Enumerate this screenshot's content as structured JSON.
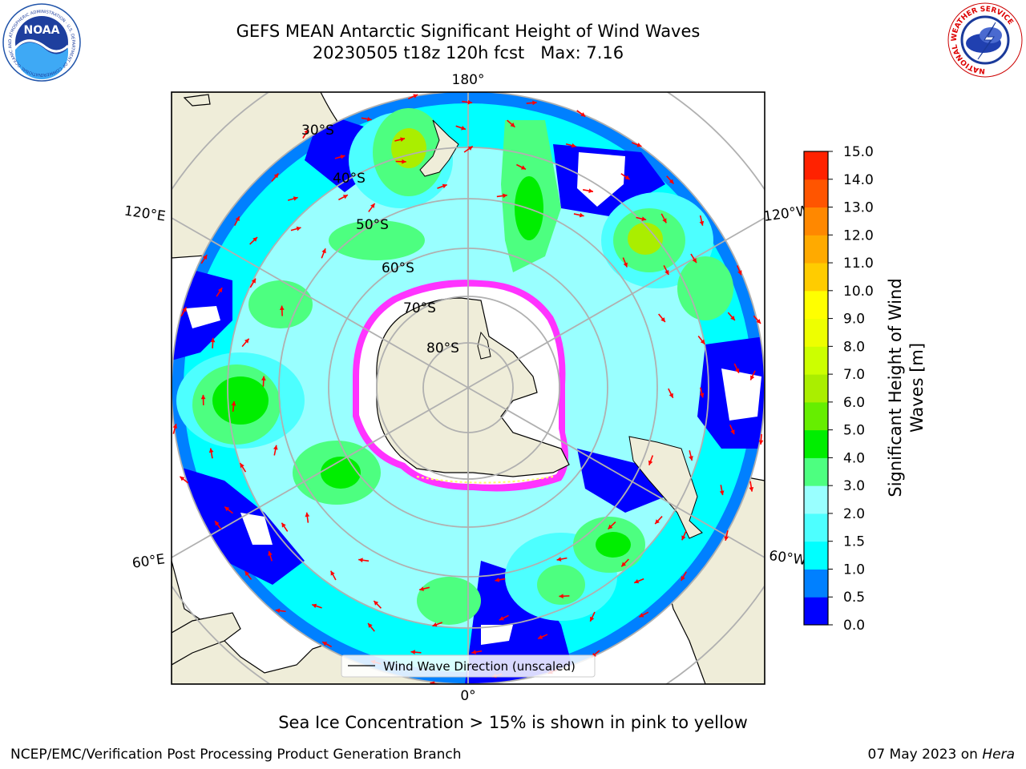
{
  "title": {
    "line1": "GEFS MEAN Antarctic Significant Height of Wind Waves",
    "line2": "20230505 t18z 120h fcst   Max: 7.16"
  },
  "logos": {
    "noaa_text": "NOAA",
    "noaa_ring": "NATIONAL OCEANIC AND ATMOSPHERIC ADMINISTRATION · U.S. DEPARTMENT OF COMMERCE",
    "nws_ring": "NATIONAL WEATHER SERVICE"
  },
  "map": {
    "projection": "south-polar-stereographic",
    "longitude_labels": {
      "top": "180°",
      "left_upper": "120°E",
      "right_upper": "120°W",
      "left_lower": "60°E",
      "right_lower": "60°W",
      "bottom": "0°"
    },
    "latitude_labels": [
      "30°S",
      "40°S",
      "50°S",
      "60°S",
      "70°S",
      "80°S"
    ],
    "legend_label": "Wind Wave Direction (unscaled)",
    "arrow_color": "#ff0000",
    "ice_colors": [
      "#ff33ff",
      "#ffff66"
    ],
    "land_color": "#efedd9",
    "ocean_colors": {
      "low": "#0000ff",
      "mid": "#00ffff",
      "high": "#66ff33"
    }
  },
  "colorbar": {
    "label_line1": "Significant Height of Wind",
    "label_line2": "Waves [m]",
    "ticks": [
      "0.0",
      "0.5",
      "1.0",
      "1.5",
      "2.0",
      "3.0",
      "4.0",
      "5.0",
      "6.0",
      "7.0",
      "8.0",
      "9.0",
      "10.0",
      "11.0",
      "12.0",
      "13.0",
      "14.0",
      "15.0"
    ],
    "colors": [
      "#0000ff",
      "#0080ff",
      "#00ffff",
      "#4dffff",
      "#99ffff",
      "#4dff80",
      "#00ee00",
      "#66ee00",
      "#aaee00",
      "#ccff00",
      "#eeff00",
      "#ffff00",
      "#ffcc00",
      "#ffaa00",
      "#ff8800",
      "#ff5500",
      "#ff2200"
    ]
  },
  "note": "Sea Ice Concentration > 15% is shown in pink to yellow",
  "footer": {
    "left": "NCEP/EMC/Verification Post Processing Product Generation Branch",
    "right_date": "07 May 2023 on ",
    "right_machine": "Hera"
  }
}
